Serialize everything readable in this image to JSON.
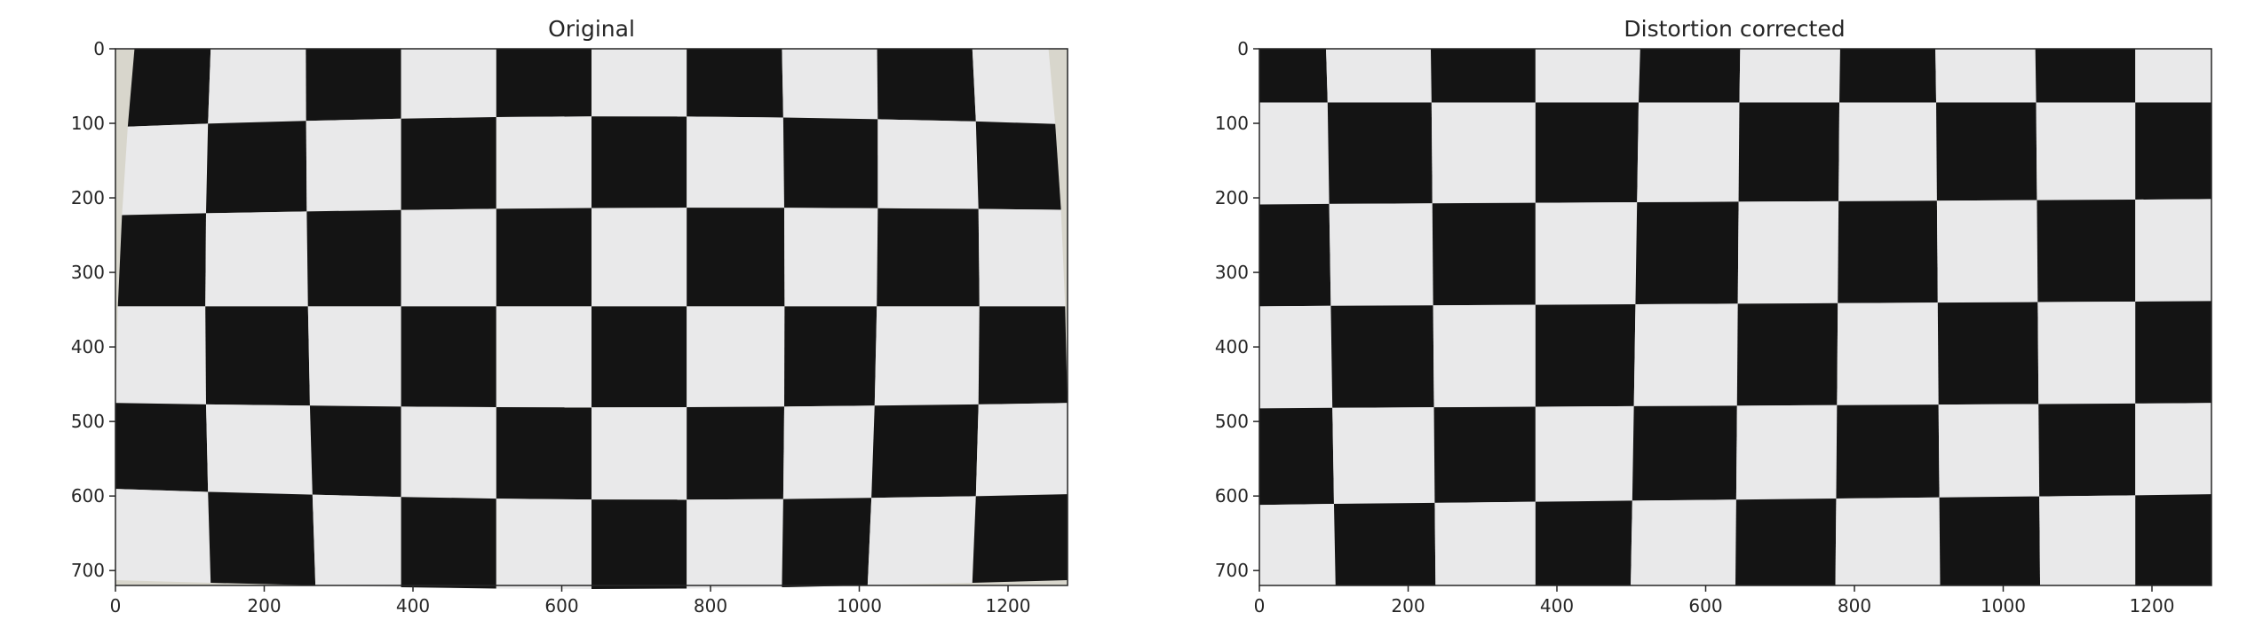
{
  "panels": [
    {
      "id": "original",
      "title": "Original",
      "x_ticks": [
        "0",
        "200",
        "400",
        "600",
        "800",
        "1000",
        "1200"
      ],
      "y_ticks": [
        "0",
        "100",
        "200",
        "300",
        "400",
        "500",
        "600",
        "700"
      ]
    },
    {
      "id": "corrected",
      "title": "Distortion corrected",
      "x_ticks": [
        "0",
        "200",
        "400",
        "600",
        "800",
        "1000",
        "1200"
      ],
      "y_ticks": [
        "0",
        "100",
        "200",
        "300",
        "400",
        "500",
        "600",
        "700"
      ]
    }
  ],
  "colors": {
    "dark_square": "#141414",
    "light_square": "#e9e9ea",
    "paper_edge": "#d8d6cc",
    "axis": "#262626"
  }
}
